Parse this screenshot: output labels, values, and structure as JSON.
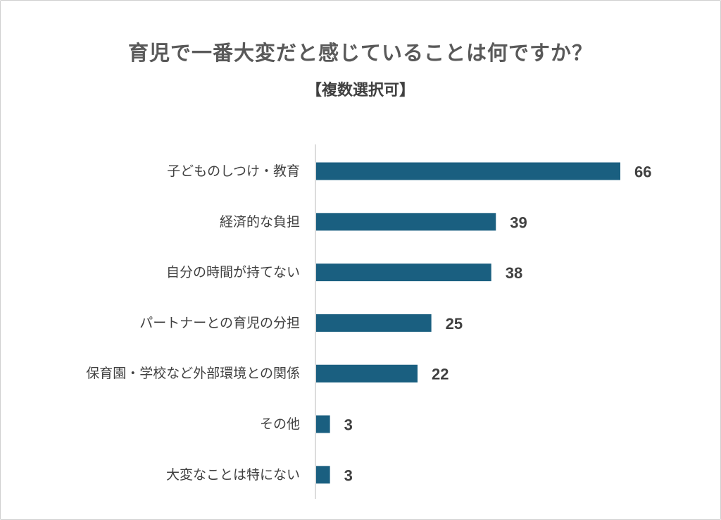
{
  "chart_data": {
    "type": "bar",
    "orientation": "horizontal",
    "title": "育児で一番大変だと感じていることは何ですか？",
    "subtitle": "【複数選択可】",
    "categories": [
      "子どものしつけ・教育",
      "経済的な負担",
      "自分の時間が持てない",
      "パートナーとの育児の分担",
      "保育園・学校など外部環境との関係",
      "その他",
      "大変なことは特にない"
    ],
    "values": [
      66,
      39,
      38,
      25,
      22,
      3,
      3
    ],
    "xlim": [
      0,
      70
    ],
    "grid": false,
    "data_labels": true,
    "bar_color": "#1a5f80",
    "axis_color": "#d0d0d0"
  }
}
